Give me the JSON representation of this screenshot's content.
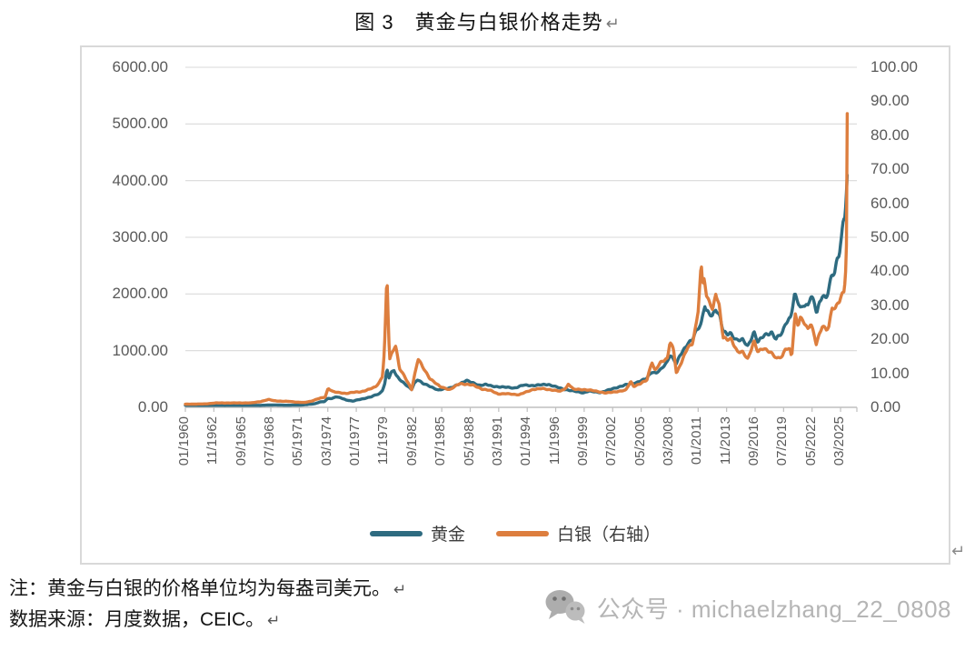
{
  "title": {
    "text": "图 3　黄金与白银价格走势",
    "return_mark": "↵"
  },
  "colors": {
    "gold_line": "#2E6B80",
    "silver_line": "#DD7E3E",
    "gridline": "#D9D9D9",
    "axis_line": "#BFBFBF",
    "axis_text": "#595959",
    "panel_border": "#D9D9D9",
    "watermark": "#B5B5B5"
  },
  "chart_data": {
    "type": "line",
    "title": "图 3　黄金与白银价格走势",
    "grid": "horizontal",
    "legend_position": "bottom",
    "x_axis": {
      "start": "01/1960",
      "end": "03/2025",
      "tick_interval_months": 34,
      "tick_labels": [
        "01/1960",
        "11/1962",
        "09/1965",
        "07/1968",
        "05/1971",
        "03/1974",
        "01/1977",
        "11/1979",
        "09/1982",
        "07/1985",
        "05/1988",
        "03/1991",
        "01/1994",
        "11/1996",
        "09/1999",
        "07/2002",
        "05/2005",
        "03/2008",
        "01/2011",
        "11/2013",
        "09/2016",
        "07/2019",
        "05/2022",
        "03/2025"
      ]
    },
    "left_axis": {
      "min": 0,
      "max": 6000,
      "ticks": [
        "6000.00",
        "5000.00",
        "4000.00",
        "3000.00",
        "2000.00",
        "1000.00",
        "0.00"
      ],
      "series": "黄金"
    },
    "right_axis": {
      "min": 0,
      "max": 100,
      "ticks": [
        "100.00",
        "90.00",
        "80.00",
        "70.00",
        "60.00",
        "50.00",
        "40.00",
        "30.00",
        "20.00",
        "10.00",
        "0.00"
      ],
      "series": "白银"
    },
    "series": [
      {
        "name": "黄金",
        "axis": "left",
        "color": "#2E6B80",
        "unit": "美元/盎司",
        "keypoints": [
          [
            1960.0,
            35.3
          ],
          [
            1967.5,
            35.2
          ],
          [
            1968.3,
            40
          ],
          [
            1969.2,
            42
          ],
          [
            1970.0,
            36
          ],
          [
            1971.0,
            39
          ],
          [
            1971.7,
            42
          ],
          [
            1972.4,
            55
          ],
          [
            1972.9,
            64
          ],
          [
            1973.4,
            95
          ],
          [
            1973.8,
            100
          ],
          [
            1974.2,
            160
          ],
          [
            1974.6,
            155
          ],
          [
            1974.96,
            185
          ],
          [
            1975.5,
            165
          ],
          [
            1976.0,
            130
          ],
          [
            1976.65,
            108
          ],
          [
            1977.2,
            135
          ],
          [
            1977.9,
            160
          ],
          [
            1978.5,
            185
          ],
          [
            1978.9,
            220
          ],
          [
            1979.3,
            240
          ],
          [
            1979.6,
            300
          ],
          [
            1979.85,
            420
          ],
          [
            1980.05,
            675
          ],
          [
            1980.25,
            520
          ],
          [
            1980.5,
            615
          ],
          [
            1980.75,
            660
          ],
          [
            1981.0,
            560
          ],
          [
            1981.5,
            460
          ],
          [
            1982.1,
            370
          ],
          [
            1982.5,
            320
          ],
          [
            1982.75,
            420
          ],
          [
            1983.1,
            490
          ],
          [
            1983.6,
            420
          ],
          [
            1984.2,
            385
          ],
          [
            1985.15,
            300
          ],
          [
            1985.8,
            330
          ],
          [
            1986.5,
            350
          ],
          [
            1987.2,
            405
          ],
          [
            1987.95,
            480
          ],
          [
            1988.5,
            435
          ],
          [
            1989.2,
            390
          ],
          [
            1989.9,
            405
          ],
          [
            1990.5,
            370
          ],
          [
            1991.5,
            360
          ],
          [
            1992.7,
            340
          ],
          [
            1993.6,
            390
          ],
          [
            1994.5,
            385
          ],
          [
            1996.1,
            405
          ],
          [
            1997.5,
            325
          ],
          [
            1998.5,
            290
          ],
          [
            1999.6,
            256
          ],
          [
            2000.1,
            285
          ],
          [
            2001.3,
            262
          ],
          [
            2002.0,
            300
          ],
          [
            2002.9,
            350
          ],
          [
            2003.9,
            400
          ],
          [
            2004.9,
            440
          ],
          [
            2005.8,
            500
          ],
          [
            2006.4,
            630
          ],
          [
            2006.8,
            600
          ],
          [
            2007.3,
            665
          ],
          [
            2007.9,
            800
          ],
          [
            2008.2,
            930
          ],
          [
            2008.6,
            830
          ],
          [
            2008.85,
            760
          ],
          [
            2009.2,
            920
          ],
          [
            2009.95,
            1130
          ],
          [
            2010.4,
            1180
          ],
          [
            2010.9,
            1370
          ],
          [
            2011.3,
            1480
          ],
          [
            2011.65,
            1825
          ],
          [
            2011.8,
            1700
          ],
          [
            2012.1,
            1650
          ],
          [
            2012.4,
            1590
          ],
          [
            2012.75,
            1740
          ],
          [
            2013.2,
            1600
          ],
          [
            2013.5,
            1340
          ],
          [
            2013.9,
            1280
          ],
          [
            2014.2,
            1300
          ],
          [
            2014.8,
            1200
          ],
          [
            2015.4,
            1190
          ],
          [
            2015.95,
            1070
          ],
          [
            2016.55,
            1340
          ],
          [
            2016.95,
            1150
          ],
          [
            2017.6,
            1270
          ],
          [
            2018.3,
            1330
          ],
          [
            2018.75,
            1200
          ],
          [
            2019.4,
            1320
          ],
          [
            2019.7,
            1500
          ],
          [
            2020.2,
            1590
          ],
          [
            2020.6,
            1970
          ],
          [
            2020.9,
            1870
          ],
          [
            2021.2,
            1740
          ],
          [
            2021.5,
            1830
          ],
          [
            2021.9,
            1790
          ],
          [
            2022.2,
            1950
          ],
          [
            2022.55,
            1840
          ],
          [
            2022.8,
            1660
          ],
          [
            2023.1,
            1880
          ],
          [
            2023.35,
            1990
          ],
          [
            2023.7,
            1920
          ],
          [
            2023.95,
            2030
          ],
          [
            2024.3,
            2330
          ],
          [
            2024.6,
            2390
          ],
          [
            2024.85,
            2660
          ],
          [
            2025.05,
            2750
          ],
          [
            2025.25,
            2980
          ],
          [
            2025.45,
            3300
          ],
          [
            2025.6,
            3380
          ],
          [
            2025.72,
            3650
          ],
          [
            2025.85,
            4060
          ]
        ]
      },
      {
        "name": "白银（右轴）",
        "axis": "right",
        "color": "#DD7E3E",
        "unit": "美元/盎司",
        "keypoints": [
          [
            1960.0,
            0.91
          ],
          [
            1962.0,
            1.0
          ],
          [
            1963.0,
            1.28
          ],
          [
            1966.5,
            1.29
          ],
          [
            1967.5,
            1.7
          ],
          [
            1968.3,
            2.3
          ],
          [
            1968.8,
            1.95
          ],
          [
            1969.5,
            1.8
          ],
          [
            1970.3,
            1.75
          ],
          [
            1971.0,
            1.55
          ],
          [
            1971.8,
            1.4
          ],
          [
            1972.5,
            1.8
          ],
          [
            1973.3,
            2.6
          ],
          [
            1973.9,
            3.0
          ],
          [
            1974.2,
            5.6
          ],
          [
            1974.7,
            4.6
          ],
          [
            1975.3,
            4.3
          ],
          [
            1976.0,
            4.1
          ],
          [
            1976.7,
            4.4
          ],
          [
            1977.5,
            4.6
          ],
          [
            1978.3,
            5.3
          ],
          [
            1978.9,
            6.0
          ],
          [
            1979.3,
            7.4
          ],
          [
            1979.6,
            9.2
          ],
          [
            1979.8,
            16.5
          ],
          [
            1980.05,
            38.8
          ],
          [
            1980.3,
            14
          ],
          [
            1980.6,
            16.2
          ],
          [
            1980.9,
            18.5
          ],
          [
            1981.3,
            11.5
          ],
          [
            1981.9,
            8.5
          ],
          [
            1982.5,
            5.3
          ],
          [
            1982.8,
            9.5
          ],
          [
            1983.15,
            14.3
          ],
          [
            1983.6,
            11.8
          ],
          [
            1984.3,
            8.6
          ],
          [
            1985.3,
            6.1
          ],
          [
            1986.3,
            5.2
          ],
          [
            1987.3,
            7.0
          ],
          [
            1987.95,
            6.8
          ],
          [
            1988.6,
            6.5
          ],
          [
            1989.5,
            5.4
          ],
          [
            1990.4,
            4.9
          ],
          [
            1991.1,
            3.95
          ],
          [
            1992.0,
            4.0
          ],
          [
            1993.2,
            3.7
          ],
          [
            1993.8,
            4.4
          ],
          [
            1994.6,
            5.3
          ],
          [
            1995.5,
            5.5
          ],
          [
            1996.3,
            5.2
          ],
          [
            1997.3,
            4.7
          ],
          [
            1997.9,
            5.8
          ],
          [
            1998.1,
            6.9
          ],
          [
            1998.6,
            5.3
          ],
          [
            1999.7,
            5.2
          ],
          [
            2000.6,
            4.9
          ],
          [
            2001.85,
            4.2
          ],
          [
            2002.8,
            4.6
          ],
          [
            2003.8,
            5.0
          ],
          [
            2004.3,
            7.6
          ],
          [
            2004.6,
            6.2
          ],
          [
            2005.3,
            7.0
          ],
          [
            2005.9,
            8.0
          ],
          [
            2006.4,
            13.5
          ],
          [
            2006.7,
            10.8
          ],
          [
            2007.3,
            13.2
          ],
          [
            2007.95,
            14.5
          ],
          [
            2008.2,
            19.5
          ],
          [
            2008.55,
            17
          ],
          [
            2008.85,
            9.8
          ],
          [
            2009.3,
            13
          ],
          [
            2009.95,
            17.8
          ],
          [
            2010.4,
            18.3
          ],
          [
            2010.8,
            24
          ],
          [
            2011.0,
            28.5
          ],
          [
            2011.3,
            42.5
          ],
          [
            2011.45,
            36
          ],
          [
            2011.6,
            39
          ],
          [
            2011.85,
            32
          ],
          [
            2012.15,
            31
          ],
          [
            2012.45,
            28
          ],
          [
            2012.75,
            33.8
          ],
          [
            2013.1,
            30
          ],
          [
            2013.5,
            20.5
          ],
          [
            2013.9,
            19.8
          ],
          [
            2014.3,
            20
          ],
          [
            2014.9,
            16.5
          ],
          [
            2015.4,
            16.2
          ],
          [
            2015.95,
            14.1
          ],
          [
            2016.55,
            19.7
          ],
          [
            2016.95,
            16.3
          ],
          [
            2017.5,
            17.2
          ],
          [
            2018.2,
            16.4
          ],
          [
            2018.85,
            14.2
          ],
          [
            2019.4,
            15
          ],
          [
            2019.7,
            17.6
          ],
          [
            2020.15,
            17
          ],
          [
            2020.3,
            14.9
          ],
          [
            2020.65,
            27
          ],
          [
            2020.95,
            24
          ],
          [
            2021.15,
            26.3
          ],
          [
            2021.45,
            25.8
          ],
          [
            2021.9,
            23
          ],
          [
            2022.2,
            24.5
          ],
          [
            2022.55,
            21
          ],
          [
            2022.75,
            18.6
          ],
          [
            2023.1,
            22
          ],
          [
            2023.35,
            24.2
          ],
          [
            2023.75,
            22.8
          ],
          [
            2024.0,
            23.5
          ],
          [
            2024.35,
            29.5
          ],
          [
            2024.65,
            29
          ],
          [
            2024.9,
            31.2
          ],
          [
            2025.1,
            31.8
          ],
          [
            2025.3,
            33
          ],
          [
            2025.5,
            34
          ],
          [
            2025.65,
            38.5
          ],
          [
            2025.75,
            47
          ],
          [
            2025.85,
            92
          ]
        ]
      }
    ]
  },
  "legend": {
    "items": [
      {
        "label": "黄金",
        "color": "#2E6B80"
      },
      {
        "label": "白银（右轴）",
        "color": "#DD7E3E"
      }
    ]
  },
  "panel": {
    "return_mark": "↵"
  },
  "notes": {
    "line1": "注：黄金与白银的价格单位均为每盎司美元。",
    "line1_return": "↵",
    "line2": "数据来源：月度数据，CEIC。",
    "line2_return": "↵"
  },
  "watermark": {
    "icon": "wechat-icon",
    "text": "公众号 · michaelzhang_22_0808"
  }
}
